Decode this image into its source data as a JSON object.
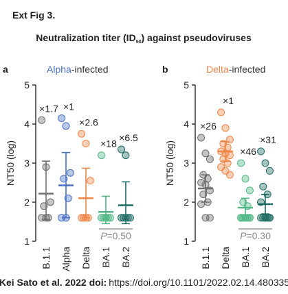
{
  "header": {
    "label": "Ext Fig 3.",
    "title_parts": [
      "Neutralization titer (ID",
      "50",
      ") against pseudoviruses"
    ]
  },
  "footer": {
    "citation": "Kei Sato et al. 2022 doi:",
    "url": "https://doi.org/10.1101/2022.02.14.480335"
  },
  "chart_data": [
    {
      "type": "dot",
      "panel_label": "a",
      "title_segments": [
        {
          "text": "Alpha",
          "color": "#4a72c4"
        },
        {
          "text": "-infected",
          "color": "#333333"
        }
      ],
      "y_label": "NT50 (log)",
      "ylim": [
        1,
        5
      ],
      "yticks": [
        1,
        2,
        3,
        4,
        5
      ],
      "categories": [
        "B.1.1",
        "Alpha",
        "Delta",
        "BA.1",
        "BA.2"
      ],
      "colors": [
        "#6f6f6f",
        "#4a72c4",
        "#ef8648",
        "#52b886",
        "#1e6b62"
      ],
      "points": [
        [
          4.1,
          2.9,
          2.0,
          1.9,
          1.6,
          1.6,
          1.6
        ],
        [
          4.15,
          3.95,
          2.75,
          2.6,
          2.1,
          1.6,
          1.6
        ],
        [
          3.75,
          3.5,
          2.55,
          1.6,
          1.6,
          1.6,
          1.6
        ],
        [
          3.2,
          1.6,
          1.6,
          1.6,
          1.6,
          1.6,
          1.6
        ],
        [
          3.35,
          3.2,
          1.6,
          1.6,
          1.6,
          1.6,
          1.6
        ]
      ],
      "means": [
        2.22,
        2.43,
        2.1,
        1.75,
        1.92
      ],
      "error_low": [
        1.55,
        1.6,
        1.6,
        1.45,
        1.45
      ],
      "error_high": [
        3.05,
        3.27,
        2.87,
        2.15,
        2.52
      ],
      "fold_labels": [
        "×1.7",
        "×1",
        "×2.6",
        "×18",
        "×6.5"
      ],
      "p_annotation": [
        "P",
        "=0.50"
      ]
    },
    {
      "type": "dot",
      "panel_label": "b",
      "title_segments": [
        {
          "text": "Delta",
          "color": "#ef8648"
        },
        {
          "text": "-infected",
          "color": "#333333"
        }
      ],
      "y_label": "NT50 (log)",
      "ylim": [
        1,
        5
      ],
      "yticks": [
        1,
        2,
        3,
        4,
        5
      ],
      "categories": [
        "B.1.1",
        "Delta",
        "BA.1",
        "BA.2"
      ],
      "colors": [
        "#6f6f6f",
        "#ef8648",
        "#52b886",
        "#1e6b62"
      ],
      "points": [
        [
          3.65,
          3.25,
          3.1,
          2.7,
          2.6,
          2.5,
          2.45,
          2.3,
          2.2,
          2.0,
          1.95,
          1.6,
          1.6
        ],
        [
          4.3,
          3.9,
          3.6,
          3.5,
          3.4,
          3.3,
          3.25,
          3.2,
          3.1,
          3.0,
          2.9,
          2.8,
          2.7
        ],
        [
          3.0,
          2.6,
          2.3,
          2.0,
          1.9,
          1.6,
          1.6,
          1.6,
          1.6,
          1.6,
          1.6,
          1.6,
          1.6
        ],
        [
          3.3,
          3.0,
          2.8,
          2.4,
          2.2,
          2.0,
          1.6,
          1.6,
          1.6,
          1.6,
          1.6,
          1.6,
          1.6
        ]
      ],
      "means": [
        2.35,
        3.3,
        1.86,
        1.95
      ],
      "error_low": [
        2.0,
        3.05,
        1.65,
        1.7
      ],
      "error_high": [
        2.7,
        3.55,
        2.1,
        2.2
      ],
      "fold_labels": [
        "×26",
        "×1",
        "×46",
        "×31"
      ],
      "p_annotation": [
        "P",
        "=0.30"
      ]
    }
  ]
}
